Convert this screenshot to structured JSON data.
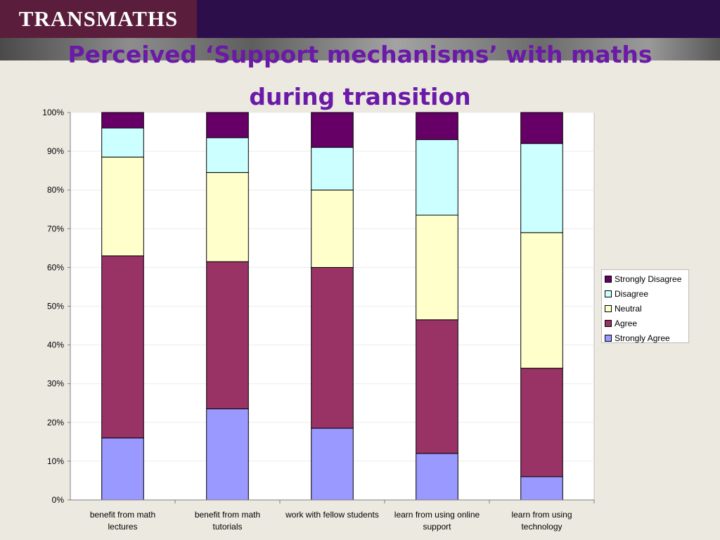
{
  "header": {
    "logo_text": "TRANSMATHS"
  },
  "title_lines": [
    "Perceived ‘Support mechanisms’ with maths",
    "during transition"
  ],
  "colors": {
    "header_bar": "#2c0f4a",
    "logo_box": "#5a1e3c",
    "title": "#6b1aa8",
    "background": "#ece9e0"
  },
  "chart_data": {
    "type": "bar",
    "stacked": true,
    "percent_stacked": true,
    "categories": [
      [
        "benefit from math",
        "lectures"
      ],
      [
        "benefit from math",
        "tutorials"
      ],
      [
        "work with fellow students"
      ],
      [
        "learn from using online",
        "support"
      ],
      [
        "learn from using",
        "technology"
      ]
    ],
    "series": [
      {
        "name": "Strongly Agree",
        "color": "#9999ff",
        "values": [
          16,
          23.5,
          18.5,
          12,
          6
        ]
      },
      {
        "name": "Agree",
        "color": "#993366",
        "values": [
          47,
          38,
          41.5,
          34.5,
          28
        ]
      },
      {
        "name": "Neutral",
        "color": "#ffffcc",
        "values": [
          25.5,
          23,
          20,
          27,
          35
        ]
      },
      {
        "name": "Disagree",
        "color": "#ccffff",
        "values": [
          7.5,
          9,
          11,
          19.5,
          23
        ]
      },
      {
        "name": "Strongly Disagree",
        "color": "#660066",
        "values": [
          4,
          6.5,
          9,
          7,
          8
        ]
      }
    ],
    "ylim": [
      0,
      100
    ],
    "yticks": [
      "0%",
      "10%",
      "20%",
      "30%",
      "40%",
      "50%",
      "60%",
      "70%",
      "80%",
      "90%",
      "100%"
    ],
    "legend_position": "right",
    "legend_order": [
      "Strongly Disagree",
      "Disagree",
      "Neutral",
      "Agree",
      "Strongly Agree"
    ],
    "grid": true
  }
}
